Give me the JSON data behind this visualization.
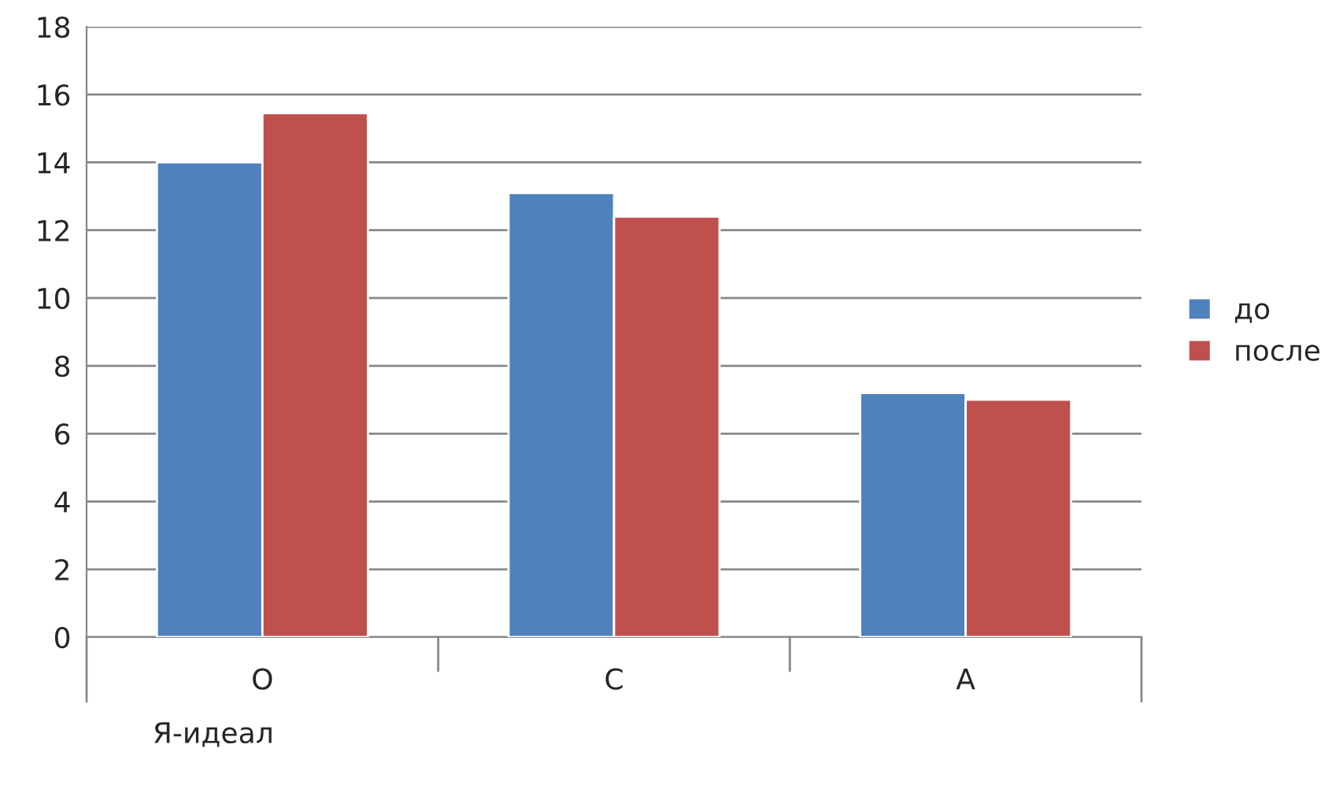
{
  "chart_data": {
    "type": "bar",
    "xlabel": "Я-идеал",
    "categories": [
      "О",
      "С",
      "А"
    ],
    "series": [
      {
        "name": "до",
        "color": "#4f81bd",
        "values": [
          14.0,
          13.1,
          7.2
        ]
      },
      {
        "name": "после",
        "color": "#c0504d",
        "values": [
          15.45,
          12.4,
          7.0
        ]
      }
    ],
    "ylim": [
      0,
      18
    ],
    "yticks": [
      0,
      2,
      4,
      6,
      8,
      10,
      12,
      14,
      16,
      18
    ],
    "grid": "y",
    "legend": "right"
  }
}
